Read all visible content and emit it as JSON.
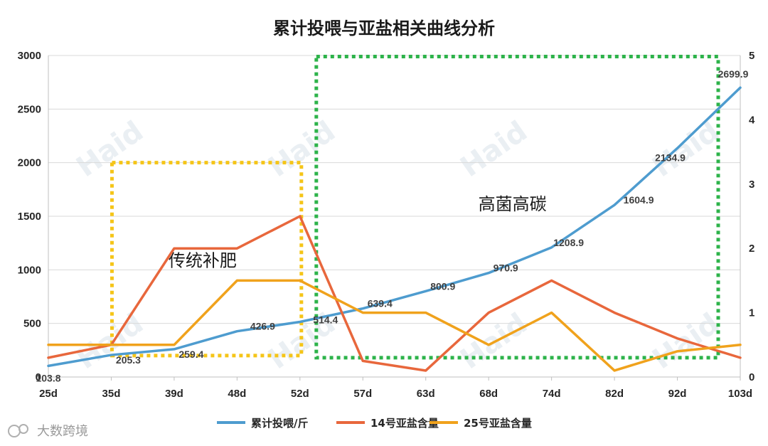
{
  "chart_data": {
    "type": "line",
    "title": "累计投喂与亚盐相关曲线分析",
    "categories": [
      "25d",
      "35d",
      "39d",
      "48d",
      "52d",
      "57d",
      "63d",
      "68d",
      "74d",
      "82d",
      "92d",
      "103d"
    ],
    "y_left": {
      "min": 0,
      "max": 3000,
      "ticks": [
        "0",
        "500",
        "1000",
        "1500",
        "2000",
        "2500",
        "3000"
      ]
    },
    "y_right": {
      "min": 0,
      "max": 5,
      "ticks": [
        "0",
        "1",
        "2",
        "3",
        "4",
        "5"
      ]
    },
    "series": [
      {
        "name": "累计投喂/斤",
        "axis": "left",
        "color": "#4e9ccf",
        "values": [
          103.8,
          205.3,
          259.4,
          426.9,
          514.4,
          639.4,
          800.9,
          970.9,
          1208.9,
          1604.9,
          2134.9,
          2699.9
        ],
        "labels": [
          "103.8",
          "205.3",
          "259.4",
          "426.9",
          "514.4",
          "639.4",
          "800.9",
          "970.9",
          "1208.9",
          "1604.9",
          "2134.9",
          "2699.9"
        ]
      },
      {
        "name": "14号亚盐含量",
        "axis": "right",
        "color": "#e8673c",
        "values": [
          0.3,
          0.5,
          2.0,
          2.0,
          2.5,
          0.25,
          0.1,
          1.0,
          1.5,
          1.0,
          0.6,
          0.3
        ]
      },
      {
        "name": "25号亚盐含量",
        "axis": "right",
        "color": "#f0a21c",
        "values": [
          0.5,
          0.5,
          0.5,
          1.5,
          1.5,
          1.0,
          1.0,
          0.5,
          1.0,
          0.1,
          0.4,
          0.5
        ]
      }
    ],
    "annotations": [
      {
        "text": "传统补肥",
        "box_color": "#f5c518",
        "from_category": "35d",
        "to_category": "52d"
      },
      {
        "text": "高菌高碳",
        "box_color": "#2db34a",
        "from_category": "52d",
        "to_category": "103d"
      }
    ],
    "watermark": "Haid",
    "footer": "大数跨境",
    "legend_position": "bottom"
  }
}
